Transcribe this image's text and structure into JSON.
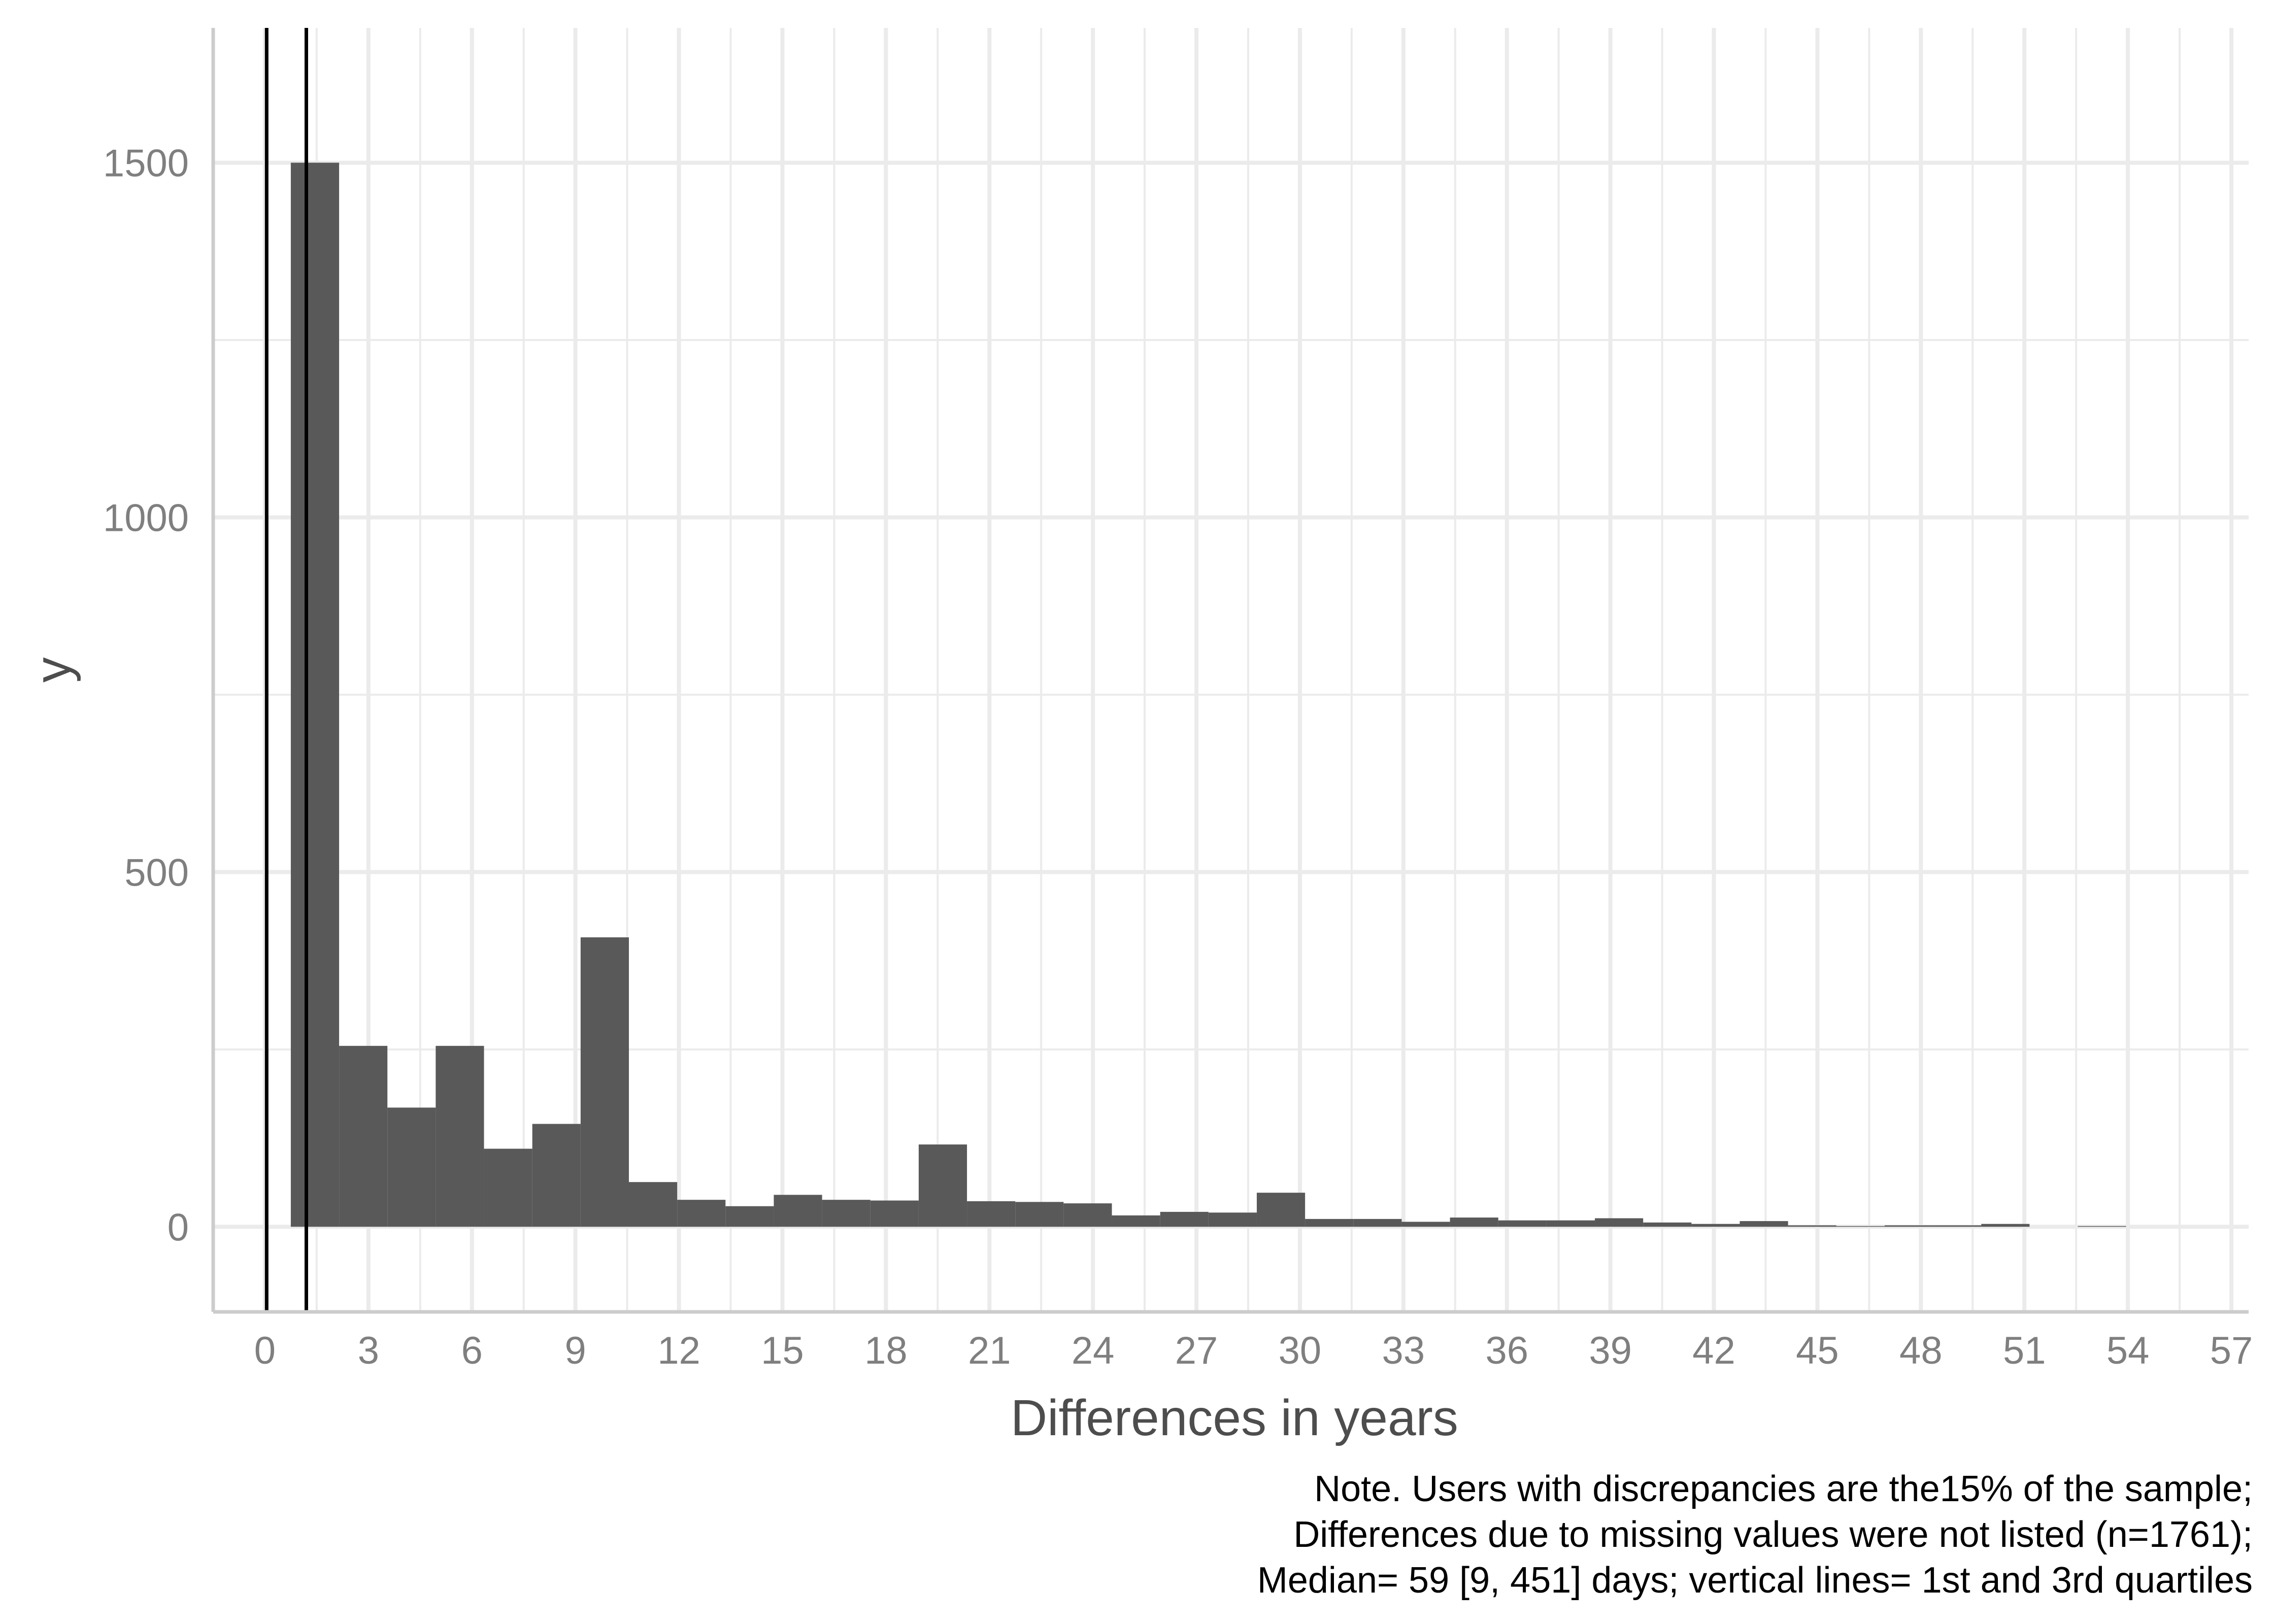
{
  "chart_data": {
    "type": "bar",
    "xlabel": "Differences in years",
    "ylabel": "y",
    "xlim": [
      -1.5,
      57.5
    ],
    "ylim": [
      -120,
      1690
    ],
    "x_ticks": [
      0,
      3,
      6,
      9,
      12,
      15,
      18,
      21,
      24,
      27,
      30,
      33,
      36,
      39,
      42,
      45,
      48,
      51,
      54,
      57
    ],
    "y_ticks": [
      0,
      500,
      1000,
      1500
    ],
    "bin_width": 1.4,
    "bars": [
      {
        "x": 1.45,
        "value": 1500
      },
      {
        "x": 2.85,
        "value": 255
      },
      {
        "x": 4.25,
        "value": 168
      },
      {
        "x": 5.65,
        "value": 255
      },
      {
        "x": 7.05,
        "value": 110
      },
      {
        "x": 8.45,
        "value": 145
      },
      {
        "x": 9.85,
        "value": 408
      },
      {
        "x": 11.25,
        "value": 63
      },
      {
        "x": 12.65,
        "value": 38
      },
      {
        "x": 14.05,
        "value": 29
      },
      {
        "x": 15.45,
        "value": 45
      },
      {
        "x": 16.85,
        "value": 38
      },
      {
        "x": 18.25,
        "value": 37
      },
      {
        "x": 19.65,
        "value": 116
      },
      {
        "x": 21.05,
        "value": 36
      },
      {
        "x": 22.45,
        "value": 35
      },
      {
        "x": 23.85,
        "value": 33
      },
      {
        "x": 25.25,
        "value": 16
      },
      {
        "x": 26.65,
        "value": 21
      },
      {
        "x": 28.05,
        "value": 20
      },
      {
        "x": 29.45,
        "value": 48
      },
      {
        "x": 30.85,
        "value": 11
      },
      {
        "x": 32.25,
        "value": 11
      },
      {
        "x": 33.65,
        "value": 7
      },
      {
        "x": 35.05,
        "value": 13
      },
      {
        "x": 36.45,
        "value": 9
      },
      {
        "x": 37.85,
        "value": 9
      },
      {
        "x": 39.25,
        "value": 12
      },
      {
        "x": 40.65,
        "value": 6
      },
      {
        "x": 42.05,
        "value": 4
      },
      {
        "x": 43.45,
        "value": 8
      },
      {
        "x": 44.85,
        "value": 2
      },
      {
        "x": 46.25,
        "value": 1
      },
      {
        "x": 47.65,
        "value": 2
      },
      {
        "x": 49.05,
        "value": 2
      },
      {
        "x": 50.45,
        "value": 4
      },
      {
        "x": 51.85,
        "value": 0
      },
      {
        "x": 53.25,
        "value": 1
      }
    ],
    "vlines": [
      0.05,
      1.2
    ],
    "bar_color": "#595959",
    "vline_color": "#000000",
    "grid": true,
    "grid_color": "#ebebeb",
    "legend": "none"
  },
  "note": {
    "lines": [
      "Note. Users with discrepancies are the15% of the sample;",
      "Differences due to missing values were not listed (n=1761);",
      "Median= 59 [9, 451] days; vertical lines= 1st and 3rd quartiles"
    ]
  }
}
